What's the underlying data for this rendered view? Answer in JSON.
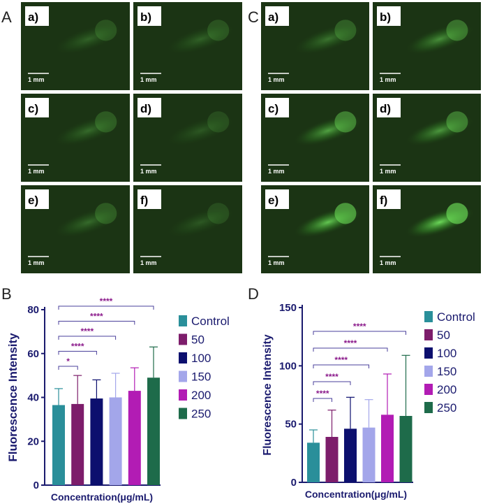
{
  "panels": {
    "A": {
      "letter": "A",
      "tiles": [
        {
          "label": "a)",
          "scale": "1 mm",
          "glow": 0.25
        },
        {
          "label": "b)",
          "scale": "1 mm",
          "glow": 0.25
        },
        {
          "label": "c)",
          "scale": "1 mm",
          "glow": 0.3
        },
        {
          "label": "d)",
          "scale": "1 mm",
          "glow": 0.2
        },
        {
          "label": "e)",
          "scale": "1 mm",
          "glow": 0.3
        },
        {
          "label": "f)",
          "scale": "1 mm",
          "glow": 0.2
        }
      ]
    },
    "C": {
      "letter": "C",
      "tiles": [
        {
          "label": "a)",
          "scale": "1 mm",
          "glow": 0.35
        },
        {
          "label": "b)",
          "scale": "1 mm",
          "glow": 0.5
        },
        {
          "label": "c)",
          "scale": "1 mm",
          "glow": 0.6
        },
        {
          "label": "d)",
          "scale": "1 mm",
          "glow": 0.55
        },
        {
          "label": "e)",
          "scale": "1 mm",
          "glow": 0.8
        },
        {
          "label": "f)",
          "scale": "1 mm",
          "glow": 0.9
        }
      ]
    }
  },
  "chart_data": [
    {
      "panel": "B",
      "type": "bar",
      "xlabel": "Concentration(μg/mL)",
      "ylabel": "Fluorescence Intensity",
      "ylim": [
        0,
        80
      ],
      "yticks": [
        0,
        20,
        40,
        60,
        80
      ],
      "categories": [
        "Control",
        "50",
        "100",
        "150",
        "200",
        "250"
      ],
      "colors": [
        "#2a8f9a",
        "#7d1d6b",
        "#0c0f6e",
        "#a3a6ea",
        "#b21cb4",
        "#1e6b4a"
      ],
      "values": [
        36.5,
        37,
        39.5,
        40,
        43,
        49
      ],
      "errors": [
        7.5,
        13,
        8.5,
        11,
        10.5,
        14
      ],
      "legend": [
        "Control",
        "50",
        "100",
        "150",
        "200",
        "250"
      ],
      "legend_position": "right",
      "significance": [
        {
          "from": 0,
          "to": 1,
          "label": "*"
        },
        {
          "from": 0,
          "to": 2,
          "label": "****"
        },
        {
          "from": 0,
          "to": 3,
          "label": "****"
        },
        {
          "from": 0,
          "to": 4,
          "label": "****"
        },
        {
          "from": 0,
          "to": 5,
          "label": "****"
        }
      ]
    },
    {
      "panel": "D",
      "type": "bar",
      "xlabel": "Concentration(μg/mL)",
      "ylabel": "Fluorescence Intensity",
      "ylim": [
        0,
        150
      ],
      "yticks": [
        0,
        50,
        100,
        150
      ],
      "categories": [
        "Control",
        "50",
        "100",
        "150",
        "200",
        "250"
      ],
      "colors": [
        "#2a8f9a",
        "#7d1d6b",
        "#0c0f6e",
        "#a3a6ea",
        "#b21cb4",
        "#1e6b4a"
      ],
      "values": [
        34,
        39,
        46,
        47,
        58,
        57
      ],
      "errors": [
        11,
        23,
        27,
        24,
        35,
        52
      ],
      "legend": [
        "Control",
        "50",
        "100",
        "150",
        "200",
        "250"
      ],
      "legend_position": "right",
      "significance": [
        {
          "from": 0,
          "to": 1,
          "label": "****"
        },
        {
          "from": 0,
          "to": 2,
          "label": "****"
        },
        {
          "from": 0,
          "to": 3,
          "label": "****"
        },
        {
          "from": 0,
          "to": 4,
          "label": "****"
        },
        {
          "from": 0,
          "to": 5,
          "label": "****"
        }
      ]
    }
  ],
  "panel_letters": {
    "B": "B",
    "D": "D"
  }
}
